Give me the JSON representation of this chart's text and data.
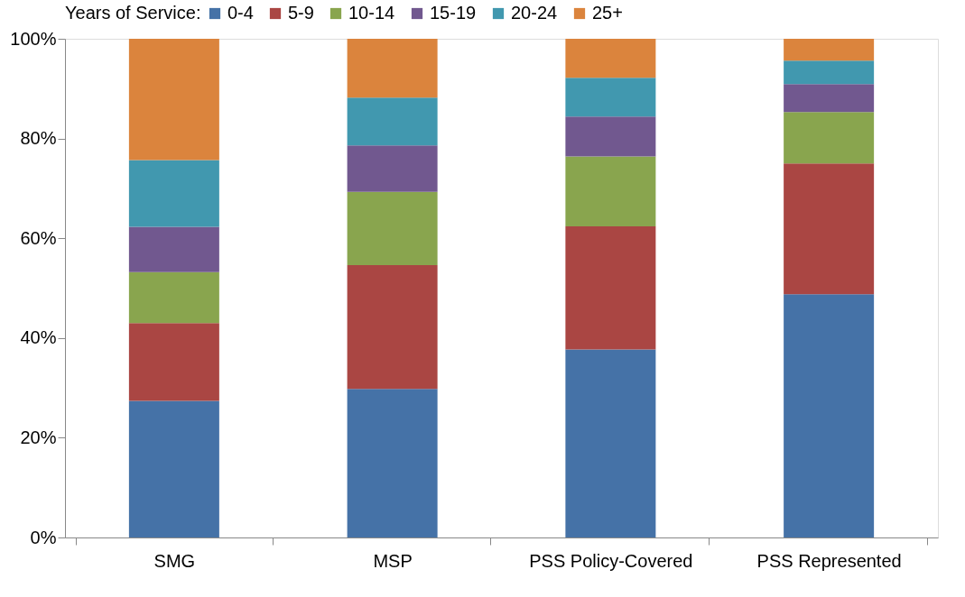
{
  "chart_data": {
    "type": "bar",
    "stacked": true,
    "legend_title": "Years of Service:",
    "legend": "top",
    "grid": false,
    "categories": [
      "SMG",
      "MSP",
      "PSS Policy-Covered",
      "PSS Represented"
    ],
    "ylim": [
      0,
      100
    ],
    "yticks": [
      {
        "value": 0,
        "label": "0%"
      },
      {
        "value": 20,
        "label": "20%"
      },
      {
        "value": 40,
        "label": "40%"
      },
      {
        "value": 60,
        "label": "60%"
      },
      {
        "value": 80,
        "label": "80%"
      },
      {
        "value": 100,
        "label": "100%"
      }
    ],
    "series": [
      {
        "name": "0-4",
        "color": "#4572a7",
        "values": [
          27.4,
          29.8,
          37.7,
          48.8
        ]
      },
      {
        "name": "5-9",
        "color": "#aa4643",
        "values": [
          15.6,
          24.8,
          24.7,
          26.2
        ]
      },
      {
        "name": "10-14",
        "color": "#89a54e",
        "values": [
          10.2,
          14.7,
          14.0,
          10.3
        ]
      },
      {
        "name": "15-19",
        "color": "#71588f",
        "values": [
          9.1,
          9.3,
          8.0,
          5.6
        ]
      },
      {
        "name": "20-24",
        "color": "#4198af",
        "values": [
          13.4,
          9.6,
          7.8,
          4.7
        ]
      },
      {
        "name": "25+",
        "color": "#db843d",
        "values": [
          24.3,
          11.8,
          7.8,
          4.4
        ]
      }
    ]
  }
}
